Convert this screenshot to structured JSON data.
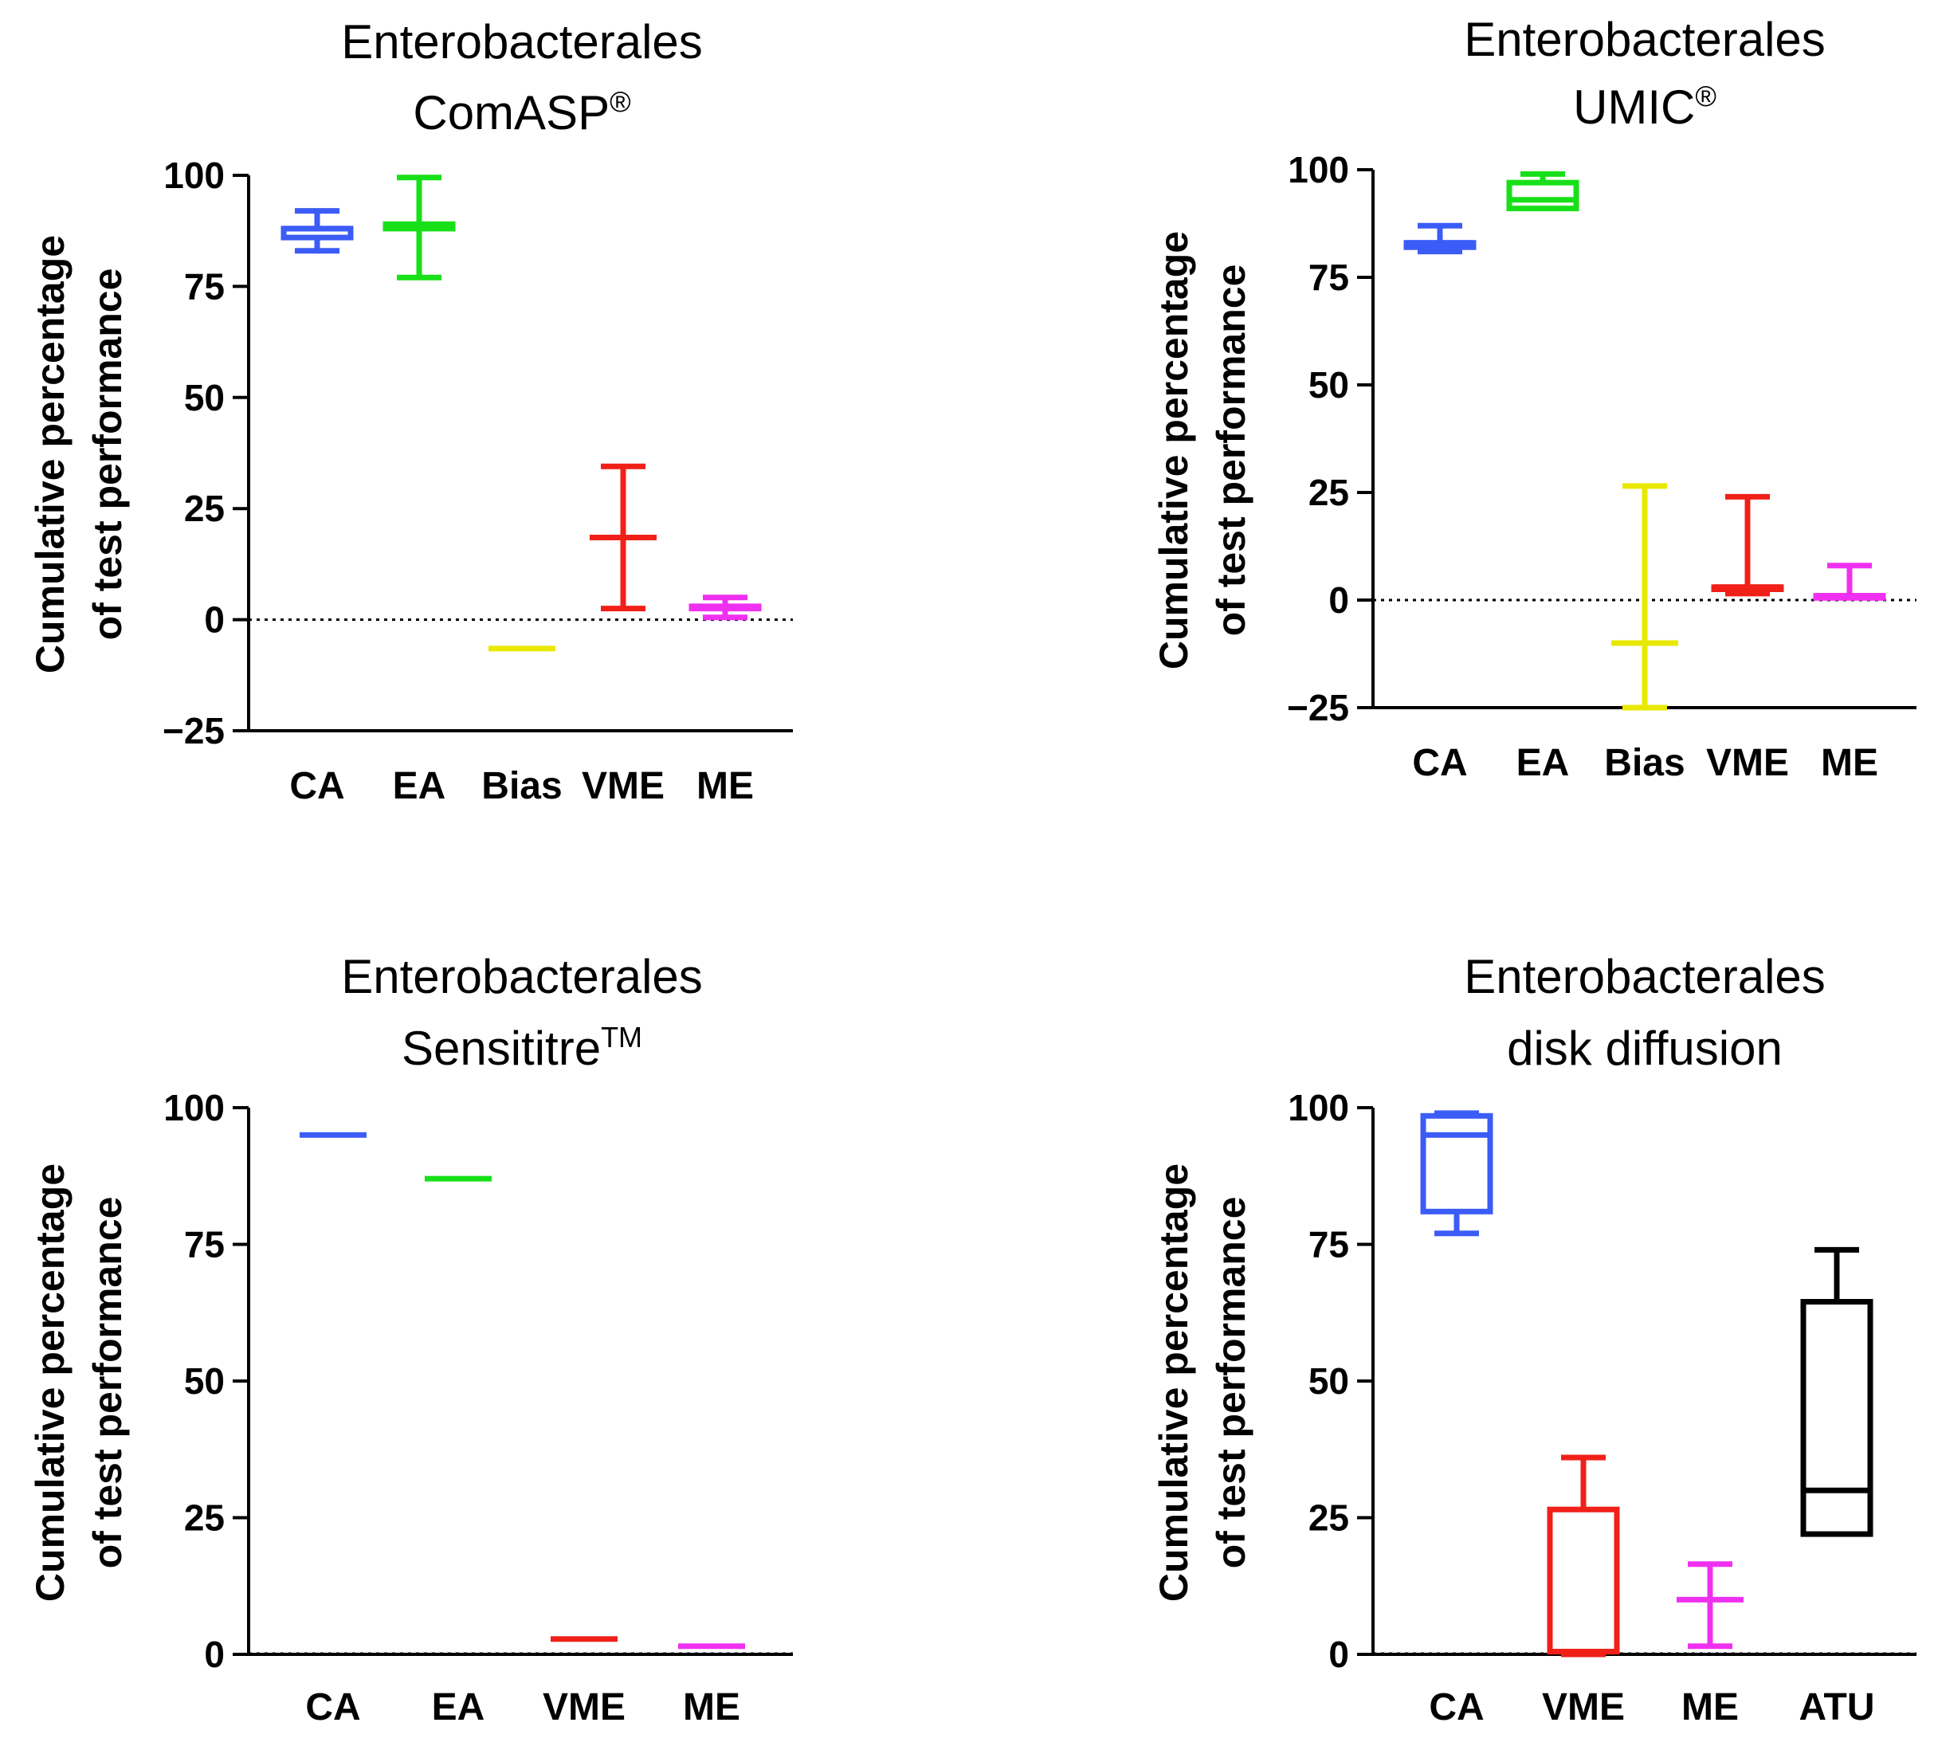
{
  "chart_data": [
    {
      "type": "boxplot",
      "title": "Enterobacterales",
      "subtitle": "ComASP",
      "subtitle_mark": "®",
      "ylabel_lines": [
        "Cumulative percentage",
        "of test performance"
      ],
      "ylim": [
        -25,
        100
      ],
      "yticks": [
        100,
        75,
        50,
        25,
        0,
        -25
      ],
      "zero_line": true,
      "series": [
        {
          "name": "CA",
          "color": "#3b5cf6",
          "min": 83,
          "q1": 86,
          "median": 88,
          "q3": 88,
          "max": 92
        },
        {
          "name": "EA",
          "color": "#18e018",
          "min": 77,
          "q1": 88,
          "median": 88.5,
          "q3": 89,
          "max": 99.5
        },
        {
          "name": "Bias",
          "color": "#e8e800",
          "min": -6.5,
          "q1": -6.5,
          "median": -6.5,
          "q3": -6.5,
          "max": -6.5
        },
        {
          "name": "VME",
          "color": "#f02018",
          "min": 2.5,
          "q1": 18.5,
          "median": 18.5,
          "q3": 18.5,
          "max": 34.5
        },
        {
          "name": "ME",
          "color": "#f030f0",
          "min": 0.5,
          "q1": 2.5,
          "median": 2.8,
          "q3": 3,
          "max": 5
        }
      ]
    },
    {
      "type": "boxplot",
      "title": "Enterobacterales",
      "subtitle": "UMIC",
      "subtitle_mark": "®",
      "ylabel_lines": [
        "Cumulative percentage",
        "of test performance"
      ],
      "ylim": [
        -25,
        100
      ],
      "yticks": [
        100,
        75,
        50,
        25,
        0,
        -25
      ],
      "zero_line": true,
      "series": [
        {
          "name": "CA",
          "color": "#3b5cf6",
          "min": 81,
          "q1": 82,
          "median": 83,
          "q3": 83,
          "max": 87
        },
        {
          "name": "EA",
          "color": "#18e018",
          "min": 91,
          "q1": 91,
          "median": 93,
          "q3": 97,
          "max": 99
        },
        {
          "name": "Bias",
          "color": "#e8e800",
          "min": -25,
          "q1": -10,
          "median": -10,
          "q3": -10,
          "max": 26.5
        },
        {
          "name": "VME",
          "color": "#f02018",
          "min": 1.5,
          "q1": 2.5,
          "median": 3,
          "q3": 3,
          "max": 24
        },
        {
          "name": "ME",
          "color": "#f030f0",
          "min": 0.5,
          "q1": 0.5,
          "median": 1,
          "q3": 1,
          "max": 8
        }
      ]
    },
    {
      "type": "boxplot",
      "title": "Enterobacterales",
      "subtitle": "Sensititre",
      "subtitle_mark": "TM",
      "ylabel_lines": [
        "Cumulative percentage",
        "of test performance"
      ],
      "ylim": [
        0,
        100
      ],
      "yticks": [
        100,
        75,
        50,
        25,
        0
      ],
      "zero_line": true,
      "series": [
        {
          "name": "CA",
          "color": "#3b5cf6",
          "min": 95,
          "q1": 95,
          "median": 95,
          "q3": 95,
          "max": 95
        },
        {
          "name": "EA",
          "color": "#18e018",
          "min": 87,
          "q1": 87,
          "median": 87,
          "q3": 87,
          "max": 87
        },
        {
          "name": "VME",
          "color": "#f02018",
          "min": 2.8,
          "q1": 2.8,
          "median": 2.8,
          "q3": 2.8,
          "max": 2.8
        },
        {
          "name": "ME",
          "color": "#f030f0",
          "min": 1.5,
          "q1": 1.5,
          "median": 1.5,
          "q3": 1.5,
          "max": 1.5
        }
      ]
    },
    {
      "type": "boxplot",
      "title": "Enterobacterales",
      "subtitle": "disk diffusion",
      "subtitle_mark": "",
      "ylabel_lines": [
        "Cumulative percentage",
        "of test performance"
      ],
      "ylim": [
        0,
        100
      ],
      "yticks": [
        100,
        75,
        50,
        25,
        0
      ],
      "zero_line": true,
      "series": [
        {
          "name": "CA",
          "color": "#3b5cf6",
          "min": 77,
          "q1": 81,
          "median": 95,
          "q3": 98.5,
          "max": 99
        },
        {
          "name": "VME",
          "color": "#f02018",
          "min": 0,
          "q1": 0.5,
          "median": 0.5,
          "q3": 26.5,
          "max": 36
        },
        {
          "name": "ME",
          "color": "#f030f0",
          "min": 1.5,
          "q1": 10,
          "median": 10,
          "q3": 10,
          "max": 16.5
        },
        {
          "name": "ATU",
          "color": "#000000",
          "min": 22,
          "q1": 22,
          "median": 30,
          "q3": 64.5,
          "max": 74
        }
      ]
    }
  ]
}
